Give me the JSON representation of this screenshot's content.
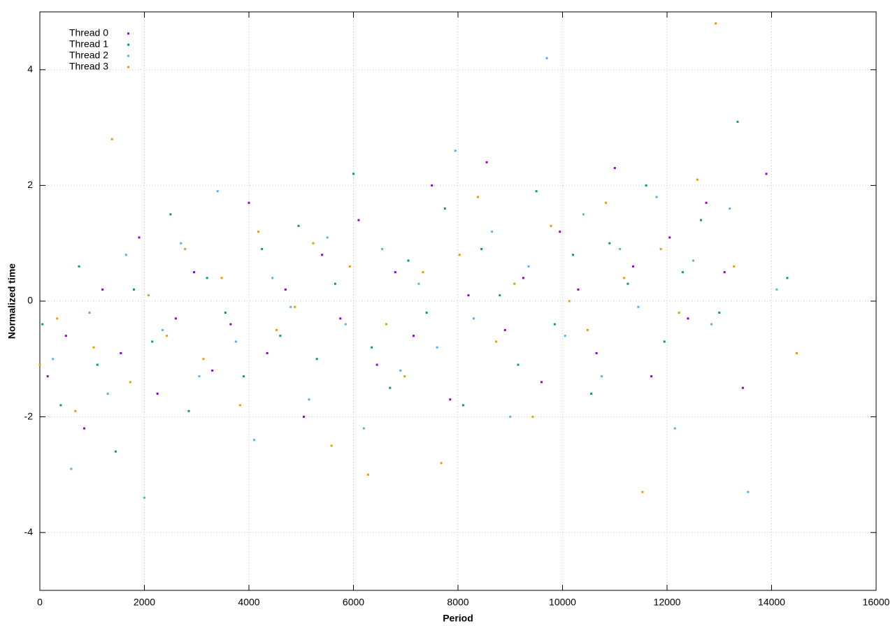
{
  "chart_data": {
    "type": "scatter",
    "xlabel": "Period",
    "ylabel": "Normalized time",
    "xlim": [
      0,
      16000
    ],
    "ylim": [
      -5,
      5
    ],
    "xticks": [
      0,
      2000,
      4000,
      6000,
      8000,
      10000,
      12000,
      14000,
      16000
    ],
    "yticks": [
      -4,
      -2,
      0,
      2,
      4
    ],
    "grid": true,
    "legend": "top-left",
    "series": [
      {
        "name": "Thread 0",
        "color": "#9400d3",
        "x": [
          150,
          500,
          850,
          1200,
          1550,
          1900,
          2250,
          2600,
          2950,
          3300,
          3650,
          4000,
          4350,
          4700,
          5050,
          5400,
          5750,
          6100,
          6450,
          6800,
          7150,
          7500,
          7850,
          8200,
          8550,
          8900,
          9250,
          9600,
          9950,
          10300,
          10650,
          11000,
          11350,
          11700,
          12050,
          12400,
          12750,
          13100,
          13450,
          13900
        ],
        "values": [
          -1.3,
          -0.6,
          -2.2,
          0.2,
          -0.9,
          1.1,
          -1.6,
          -0.3,
          0.5,
          -1.2,
          -0.4,
          1.7,
          -0.9,
          0.2,
          -2.0,
          0.8,
          -0.3,
          1.4,
          -1.1,
          0.5,
          -0.6,
          2.0,
          -1.7,
          0.1,
          2.4,
          -0.5,
          0.4,
          -1.4,
          1.2,
          0.2,
          -0.9,
          2.3,
          0.6,
          -1.3,
          1.1,
          -0.3,
          1.7,
          0.5,
          -1.5,
          2.2
        ]
      },
      {
        "name": "Thread 1",
        "color": "#009e73",
        "x": [
          50,
          400,
          750,
          1100,
          1450,
          1800,
          2150,
          2500,
          2850,
          3200,
          3550,
          3900,
          4250,
          4600,
          4950,
          5300,
          5650,
          6000,
          6350,
          6700,
          7050,
          7400,
          7750,
          8100,
          8450,
          8800,
          9150,
          9500,
          9850,
          10200,
          10550,
          10900,
          11250,
          11600,
          11950,
          12300,
          12650,
          13000,
          13350,
          14300
        ],
        "values": [
          -0.4,
          -1.8,
          0.6,
          -1.1,
          -2.6,
          0.2,
          -0.7,
          1.5,
          -1.9,
          0.4,
          -0.2,
          -1.3,
          0.9,
          -0.6,
          1.3,
          -1.0,
          0.3,
          2.2,
          -0.8,
          -1.5,
          0.7,
          -0.2,
          1.6,
          -1.8,
          0.9,
          0.1,
          -1.1,
          1.9,
          -0.4,
          0.8,
          -1.6,
          1.0,
          0.3,
          2.0,
          -0.7,
          0.5,
          1.4,
          -0.2,
          3.1,
          0.4
        ]
      },
      {
        "name": "Thread 2",
        "color": "#56b4e9",
        "x": [
          250,
          600,
          950,
          1300,
          1650,
          2000,
          2350,
          2700,
          3050,
          3400,
          3750,
          4100,
          4450,
          4800,
          5150,
          5500,
          5850,
          6200,
          6550,
          6900,
          7250,
          7600,
          7950,
          8300,
          8650,
          9000,
          9350,
          9700,
          10050,
          10400,
          10750,
          11100,
          11450,
          11800,
          12150,
          12500,
          12850,
          13200,
          13550,
          14100
        ],
        "values": [
          -1.0,
          -2.9,
          -0.2,
          -1.6,
          0.8,
          -3.4,
          -0.5,
          1.0,
          -1.3,
          1.9,
          -0.7,
          -2.4,
          0.4,
          -0.1,
          -1.7,
          1.1,
          -0.4,
          -2.2,
          0.9,
          -1.2,
          0.3,
          -0.8,
          2.6,
          -0.3,
          1.2,
          -2.0,
          0.6,
          4.2,
          -0.6,
          1.5,
          -1.3,
          0.9,
          -0.1,
          1.8,
          -2.2,
          0.7,
          -0.4,
          1.6,
          -3.3,
          0.2
        ]
      },
      {
        "name": "Thread 3",
        "color": "#e69f00",
        "x": [
          0,
          330,
          680,
          1030,
          1380,
          1730,
          2080,
          2430,
          2780,
          3130,
          3480,
          3830,
          4180,
          4530,
          4880,
          5230,
          5580,
          5930,
          6280,
          6630,
          6980,
          7330,
          7680,
          8030,
          8380,
          8730,
          9080,
          9430,
          9780,
          10130,
          10480,
          10830,
          11180,
          11530,
          11880,
          12230,
          12580,
          12930,
          13280,
          14480
        ],
        "values": [
          -1.1,
          -0.3,
          -1.9,
          -0.8,
          2.8,
          -1.4,
          0.1,
          -0.6,
          0.9,
          -1.0,
          0.4,
          -1.8,
          1.2,
          -0.5,
          -0.1,
          1.0,
          -2.5,
          0.6,
          -3.0,
          -0.4,
          -1.3,
          0.5,
          -2.8,
          0.8,
          1.8,
          -0.7,
          0.3,
          -2.0,
          1.3,
          0.0,
          -0.5,
          1.7,
          0.4,
          -3.3,
          0.9,
          -0.2,
          2.1,
          4.8,
          0.6,
          -0.9
        ]
      }
    ]
  }
}
